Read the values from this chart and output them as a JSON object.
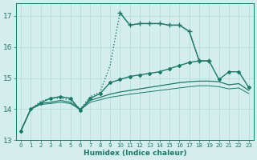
{
  "xlabel": "Humidex (Indice chaleur)",
  "background_color": "#d4eeee",
  "grid_color": "#b8d8d8",
  "line_color": "#1a7a6a",
  "xlim": [
    -0.5,
    23.5
  ],
  "ylim": [
    13,
    17.4
  ],
  "yticks": [
    13,
    14,
    15,
    16,
    17
  ],
  "xticks": [
    0,
    1,
    2,
    3,
    4,
    5,
    6,
    7,
    8,
    9,
    10,
    11,
    12,
    13,
    14,
    15,
    16,
    17,
    18,
    19,
    20,
    21,
    22,
    23
  ],
  "series": [
    {
      "x": [
        0,
        1,
        2,
        3,
        4,
        5,
        6,
        7,
        8,
        9,
        10,
        11,
        12,
        13,
        14,
        15,
        16,
        17,
        18
      ],
      "y": [
        13.3,
        14.0,
        14.25,
        14.35,
        14.35,
        14.3,
        14.0,
        14.4,
        14.55,
        15.4,
        17.1,
        16.7,
        16.75,
        16.75,
        16.75,
        16.7,
        16.7,
        16.5,
        15.55
      ],
      "style": "dotted",
      "marker": null,
      "markersize": 0,
      "linewidth": 1.0
    },
    {
      "x": [
        10,
        11,
        12,
        13,
        14,
        15,
        16,
        17,
        18,
        19
      ],
      "y": [
        17.1,
        16.7,
        16.75,
        16.75,
        16.75,
        16.7,
        16.7,
        16.5,
        15.55,
        15.55
      ],
      "style": "-",
      "marker": "+",
      "markersize": 4,
      "linewidth": 1.0
    },
    {
      "x": [
        0,
        1,
        2,
        3,
        4,
        5,
        6,
        7,
        8,
        9,
        10,
        11,
        12,
        13,
        14,
        15,
        16,
        17,
        18,
        19,
        20,
        21,
        22,
        23
      ],
      "y": [
        13.3,
        14.0,
        14.2,
        14.35,
        14.4,
        14.35,
        13.95,
        14.35,
        14.5,
        14.85,
        14.95,
        15.05,
        15.1,
        15.15,
        15.2,
        15.3,
        15.4,
        15.5,
        15.55,
        15.55,
        14.95,
        15.2,
        15.2,
        14.7
      ],
      "style": "-",
      "marker": "D",
      "markersize": 2.0,
      "linewidth": 1.0
    },
    {
      "x": [
        0,
        1,
        2,
        3,
        4,
        5,
        6,
        7,
        8,
        9,
        10,
        11,
        12,
        13,
        14,
        15,
        16,
        17,
        18,
        19,
        20,
        21,
        22,
        23
      ],
      "y": [
        13.3,
        14.0,
        14.18,
        14.22,
        14.28,
        14.22,
        14.0,
        14.28,
        14.38,
        14.48,
        14.55,
        14.6,
        14.65,
        14.7,
        14.75,
        14.8,
        14.85,
        14.88,
        14.9,
        14.9,
        14.88,
        14.78,
        14.82,
        14.6
      ],
      "style": "-",
      "marker": null,
      "markersize": 0,
      "linewidth": 0.9
    },
    {
      "x": [
        0,
        1,
        2,
        3,
        4,
        5,
        6,
        7,
        8,
        9,
        10,
        11,
        12,
        13,
        14,
        15,
        16,
        17,
        18,
        19,
        20,
        21,
        22,
        23
      ],
      "y": [
        13.3,
        14.0,
        14.15,
        14.18,
        14.22,
        14.18,
        13.98,
        14.22,
        14.3,
        14.38,
        14.43,
        14.48,
        14.52,
        14.56,
        14.6,
        14.64,
        14.68,
        14.72,
        14.75,
        14.75,
        14.72,
        14.65,
        14.68,
        14.5
      ],
      "style": "-",
      "marker": null,
      "markersize": 0,
      "linewidth": 0.7
    }
  ]
}
